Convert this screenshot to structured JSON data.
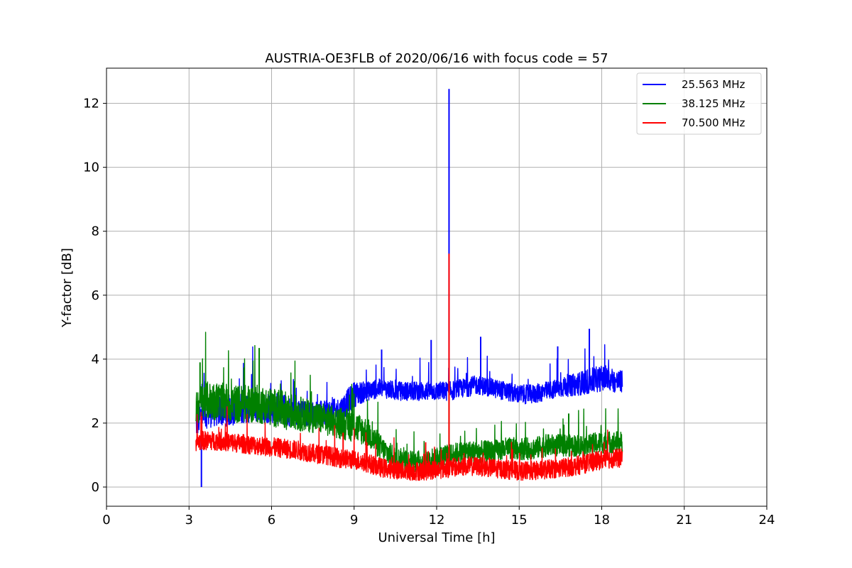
{
  "chart_data": {
    "type": "line",
    "title": "AUSTRIA-OE3FLB of 2020/06/16 with focus code = 57",
    "xlabel": "Universal Time [h]",
    "ylabel": "Y-factor [dB]",
    "xlim": [
      0,
      24
    ],
    "ylim": [
      -0.6,
      13.1
    ],
    "xticks": [
      0,
      3,
      6,
      9,
      12,
      15,
      18,
      21,
      24
    ],
    "yticks": [
      0,
      2,
      4,
      6,
      8,
      10,
      12
    ],
    "grid": true,
    "legend_position": "top-right",
    "series": [
      {
        "name": "25.563 MHz",
        "color": "#0000ff",
        "x": [
          3.25,
          3.5,
          4.0,
          4.5,
          5.0,
          5.5,
          6.0,
          6.5,
          7.0,
          7.5,
          8.0,
          8.5,
          9.0,
          9.5,
          10.0,
          10.5,
          11.0,
          11.5,
          12.0,
          12.5,
          13.0,
          13.5,
          14.0,
          14.5,
          15.0,
          15.5,
          16.0,
          16.5,
          17.0,
          17.5,
          18.0,
          18.5,
          18.75
        ],
        "y": [
          2.0,
          2.3,
          2.4,
          2.4,
          2.5,
          2.5,
          2.5,
          2.4,
          2.3,
          2.3,
          2.3,
          2.4,
          2.9,
          3.0,
          3.1,
          3.0,
          3.0,
          3.0,
          3.0,
          3.0,
          3.1,
          3.2,
          3.1,
          3.0,
          2.9,
          2.9,
          3.0,
          3.1,
          3.2,
          3.3,
          3.4,
          3.3,
          3.3
        ],
        "spread": [
          0.5,
          0.5,
          0.5,
          0.5,
          0.5,
          0.5,
          0.5,
          0.5,
          0.4,
          0.4,
          0.4,
          0.4,
          0.4,
          0.3,
          0.3,
          0.3,
          0.3,
          0.3,
          0.3,
          0.3,
          0.3,
          0.3,
          0.3,
          0.3,
          0.3,
          0.3,
          0.3,
          0.3,
          0.35,
          0.4,
          0.4,
          0.35,
          0.35
        ],
        "spikes": [
          {
            "x": 3.45,
            "y": 0.0
          },
          {
            "x": 12.45,
            "y": 12.45
          },
          {
            "x": 11.8,
            "y": 4.6
          },
          {
            "x": 13.6,
            "y": 4.7
          },
          {
            "x": 17.55,
            "y": 4.95
          },
          {
            "x": 10.0,
            "y": 4.3
          },
          {
            "x": 16.4,
            "y": 4.4
          }
        ]
      },
      {
        "name": "38.125 MHz",
        "color": "#008000",
        "x": [
          3.25,
          3.5,
          4.0,
          4.5,
          5.0,
          5.5,
          6.0,
          6.5,
          7.0,
          7.5,
          8.0,
          8.5,
          9.0,
          9.5,
          10.0,
          10.5,
          11.0,
          11.5,
          12.0,
          12.5,
          13.0,
          13.5,
          14.0,
          14.5,
          15.0,
          15.5,
          16.0,
          16.5,
          17.0,
          17.5,
          18.0,
          18.5,
          18.75
        ],
        "y": [
          2.5,
          2.7,
          2.7,
          2.6,
          2.6,
          2.6,
          2.5,
          2.4,
          2.3,
          2.2,
          2.1,
          2.0,
          1.9,
          1.7,
          1.2,
          0.9,
          0.8,
          0.8,
          0.9,
          1.0,
          1.1,
          1.1,
          1.1,
          1.2,
          1.2,
          1.2,
          1.3,
          1.3,
          1.3,
          1.3,
          1.4,
          1.4,
          1.4
        ],
        "spread": [
          0.6,
          0.6,
          0.6,
          0.6,
          0.6,
          0.6,
          0.6,
          0.6,
          0.55,
          0.5,
          0.5,
          0.5,
          0.5,
          0.45,
          0.4,
          0.35,
          0.35,
          0.35,
          0.35,
          0.35,
          0.35,
          0.35,
          0.35,
          0.35,
          0.35,
          0.35,
          0.35,
          0.35,
          0.35,
          0.35,
          0.35,
          0.35,
          0.35
        ],
        "spikes": [
          {
            "x": 5.55,
            "y": 4.35
          },
          {
            "x": 3.4,
            "y": 3.9
          },
          {
            "x": 16.8,
            "y": 2.3
          },
          {
            "x": 12.45,
            "y": 3.2
          }
        ]
      },
      {
        "name": "70.500 MHz",
        "color": "#ff0000",
        "x": [
          3.25,
          3.5,
          4.0,
          4.5,
          5.0,
          5.5,
          6.0,
          6.5,
          7.0,
          7.5,
          8.0,
          8.5,
          9.0,
          9.5,
          10.0,
          10.5,
          11.0,
          11.5,
          12.0,
          12.5,
          13.0,
          13.5,
          14.0,
          14.5,
          15.0,
          15.5,
          16.0,
          16.5,
          17.0,
          17.5,
          18.0,
          18.5,
          18.75
        ],
        "y": [
          1.4,
          1.45,
          1.45,
          1.4,
          1.35,
          1.3,
          1.25,
          1.2,
          1.15,
          1.05,
          1.0,
          0.9,
          0.85,
          0.75,
          0.6,
          0.55,
          0.5,
          0.5,
          0.55,
          0.6,
          0.65,
          0.65,
          0.6,
          0.55,
          0.5,
          0.5,
          0.55,
          0.6,
          0.65,
          0.75,
          0.85,
          0.9,
          0.9
        ],
        "spread": [
          0.3,
          0.3,
          0.3,
          0.3,
          0.3,
          0.3,
          0.3,
          0.3,
          0.3,
          0.3,
          0.3,
          0.3,
          0.3,
          0.3,
          0.3,
          0.3,
          0.3,
          0.3,
          0.3,
          0.3,
          0.3,
          0.3,
          0.3,
          0.3,
          0.3,
          0.3,
          0.3,
          0.3,
          0.3,
          0.3,
          0.3,
          0.3,
          0.3
        ],
        "spikes": [
          {
            "x": 12.45,
            "y": 7.3
          },
          {
            "x": 11.6,
            "y": 1.4
          },
          {
            "x": 8.6,
            "y": 1.7
          }
        ]
      }
    ]
  }
}
